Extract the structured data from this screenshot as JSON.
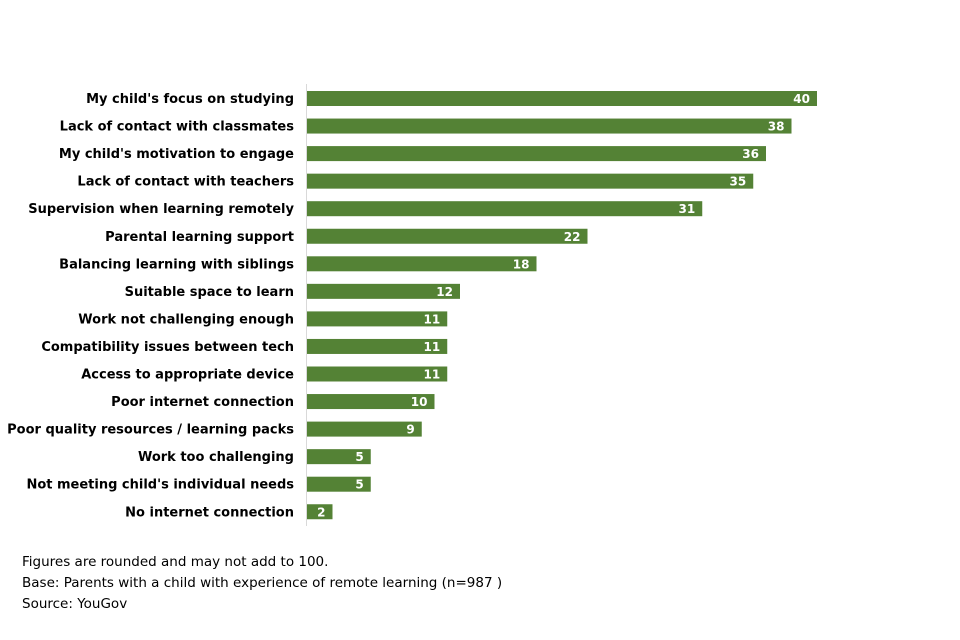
{
  "chart_data": {
    "type": "bar",
    "orientation": "horizontal",
    "categories": [
      "My child's focus on studying",
      "Lack of contact with classmates",
      "My child's motivation to engage",
      "Lack of contact with teachers",
      "Supervision when learning remotely",
      "Parental learning support",
      "Balancing learning with siblings",
      "Suitable space to learn",
      "Work not challenging enough",
      "Compatibility issues between tech",
      "Access to appropriate device",
      "Poor internet connection",
      "Poor quality resources / learning packs",
      "Work too challenging",
      "Not meeting child's individual needs",
      "No internet connection"
    ],
    "values": [
      40,
      38,
      36,
      35,
      31,
      22,
      18,
      12,
      11,
      11,
      11,
      10,
      9,
      5,
      5,
      2
    ],
    "xlim": [
      0,
      40
    ],
    "data_labels": true,
    "grid": false,
    "legend": "none",
    "bar_color": "#548235",
    "label_color": "#ffffff"
  },
  "notes": {
    "line1": "Figures are rounded and may not add to 100.",
    "line2": "Base: Parents with a child with experience of remote learning (n=987 )",
    "line3": "Source: YouGov"
  }
}
